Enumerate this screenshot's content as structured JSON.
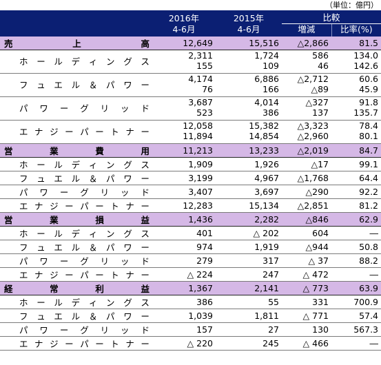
{
  "unit_note": "（単位：億円）",
  "header": {
    "col1": {
      "year": "2016年",
      "period": "4-6月"
    },
    "col2": {
      "year": "2015年",
      "period": "4-6月"
    },
    "compare": "比較",
    "diff": "増減",
    "ratio": "比率(%)"
  },
  "sections": [
    {
      "label": "売上高",
      "values": [
        "12,649",
        "15,516",
        "△2,866",
        "81.5"
      ],
      "items": [
        {
          "label": "ホールディングス",
          "lines": [
            [
              "2,311",
              "1,724",
              "586",
              "134.0"
            ],
            [
              "155",
              "109",
              "46",
              "142.6"
            ]
          ]
        },
        {
          "label": "フュエル＆パワー",
          "lines": [
            [
              "4,174",
              "6,886",
              "△2,712",
              "60.6"
            ],
            [
              "76",
              "166",
              "△89",
              "45.9"
            ]
          ]
        },
        {
          "label": "パワーグリッド",
          "lines": [
            [
              "3,687",
              "4,014",
              "△327",
              "91.8"
            ],
            [
              "523",
              "386",
              "137",
              "135.7"
            ]
          ]
        },
        {
          "label": "エナジーパートナー",
          "lines": [
            [
              "12,058",
              "15,382",
              "△3,323",
              "78.4"
            ],
            [
              "11,894",
              "14,854",
              "△2,960",
              "80.1"
            ]
          ]
        }
      ]
    },
    {
      "label": "営業費用",
      "values": [
        "11,213",
        "13,233",
        "△2,019",
        "84.7"
      ],
      "items": [
        {
          "label": "ホールディングス",
          "lines": [
            [
              "1,909",
              "1,926",
              "△17",
              "99.1"
            ]
          ]
        },
        {
          "label": "フュエル＆パワー",
          "lines": [
            [
              "3,199",
              "4,967",
              "△1,768",
              "64.4"
            ]
          ]
        },
        {
          "label": "パワーグリッド",
          "lines": [
            [
              "3,407",
              "3,697",
              "△290",
              "92.2"
            ]
          ]
        },
        {
          "label": "エナジーパートナー",
          "lines": [
            [
              "12,283",
              "15,134",
              "△2,851",
              "81.2"
            ]
          ]
        }
      ]
    },
    {
      "label": "営業損益",
      "values": [
        "1,436",
        "2,282",
        "△846",
        "62.9"
      ],
      "items": [
        {
          "label": "ホールディングス",
          "lines": [
            [
              "401",
              "△ 202",
              "604",
              "―"
            ]
          ]
        },
        {
          "label": "フュエル＆パワー",
          "lines": [
            [
              "974",
              "1,919",
              "△944",
              "50.8"
            ]
          ]
        },
        {
          "label": "パワーグリッド",
          "lines": [
            [
              "279",
              "317",
              "△ 37",
              "88.2"
            ]
          ]
        },
        {
          "label": "エナジーパートナー",
          "lines": [
            [
              "△ 224",
              "247",
              "△ 472",
              "―"
            ]
          ]
        }
      ]
    },
    {
      "label": "経常利益",
      "values": [
        "1,367",
        "2,141",
        "△ 773",
        "63.9"
      ],
      "items": [
        {
          "label": "ホールディングス",
          "lines": [
            [
              "386",
              "55",
              "331",
              "700.9"
            ]
          ]
        },
        {
          "label": "フュエル＆パワー",
          "lines": [
            [
              "1,039",
              "1,811",
              "△ 771",
              "57.4"
            ]
          ]
        },
        {
          "label": "パワーグリッド",
          "lines": [
            [
              "157",
              "27",
              "130",
              "567.3"
            ]
          ]
        },
        {
          "label": "エナジーパートナー",
          "lines": [
            [
              "△ 220",
              "245",
              "△ 466",
              "―"
            ]
          ]
        }
      ]
    }
  ]
}
